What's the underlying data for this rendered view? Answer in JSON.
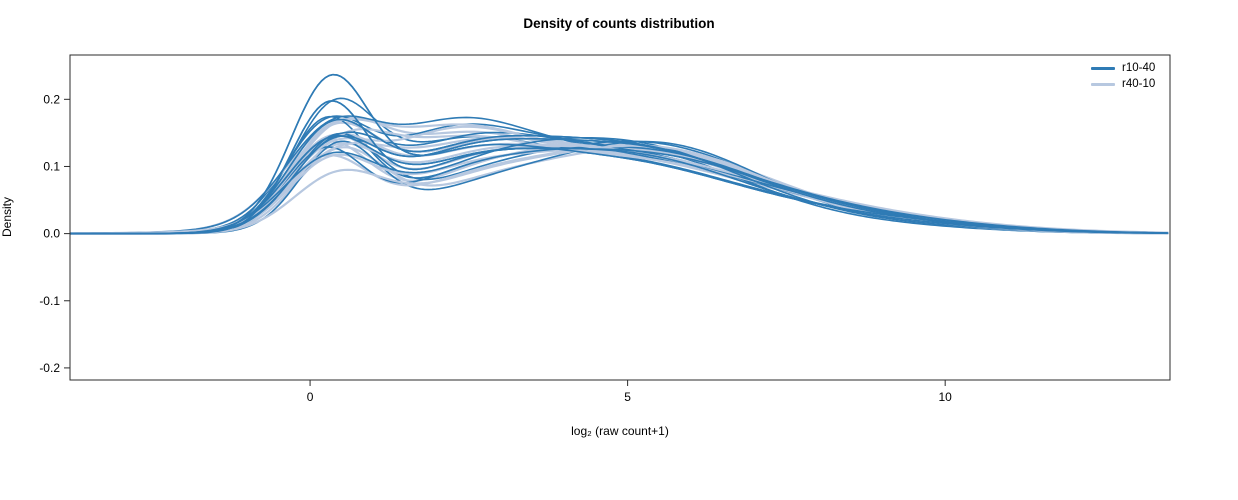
{
  "title": "Density of counts distribution",
  "chart_data": {
    "type": "line",
    "subtype": "density",
    "title": "Density of counts distribution",
    "xlabel": "log₂ (raw count+1)",
    "ylabel": "Density",
    "xlim": [
      -3.78,
      13.54
    ],
    "ylim": [
      -0.218,
      0.266
    ],
    "x_ticks": [
      0,
      5,
      10
    ],
    "y_ticks": [
      -0.2,
      -0.1,
      0.0,
      0.1,
      0.2
    ],
    "grid": false,
    "legend_position": "top-right",
    "curve_model": "y(x) = sum over triples (a,m,s) of a*exp(-(x-m)^2/(2*s^2)); each curve is a bimodal density: sharp peak near x=0.3 (height 0.10-0.235), broad hump near x=4-5.5 (height ~0.10-0.15), tail to x~13",
    "series_groups": [
      {
        "name": "r10-40",
        "color": "#2f7bb5",
        "stroke_width": 1.6,
        "curves": [
          [
            0.205,
            0.3,
            0.62,
            0.105,
            4.6,
            2.0,
            0.02,
            8.5,
            2.0,
            0.07,
            2.2,
            1.2
          ],
          [
            0.175,
            0.28,
            0.6,
            0.115,
            4.9,
            1.9,
            0.015,
            8.8,
            1.8,
            0.065,
            2.3,
            1.2
          ],
          [
            0.16,
            0.35,
            0.65,
            0.11,
            4.4,
            2.1,
            0.02,
            8.2,
            2.0,
            0.075,
            2.1,
            1.1
          ],
          [
            0.155,
            0.25,
            0.63,
            0.12,
            5.1,
            1.8,
            0.01,
            9.0,
            1.6,
            0.06,
            2.4,
            1.3
          ],
          [
            0.135,
            0.32,
            0.68,
            0.125,
            4.7,
            2.0,
            0.02,
            8.0,
            2.2,
            0.07,
            2.2,
            1.2
          ],
          [
            0.13,
            0.4,
            0.66,
            0.13,
            5.3,
            1.8,
            0.015,
            9.2,
            1.7,
            0.055,
            2.5,
            1.3
          ],
          [
            0.125,
            0.22,
            0.64,
            0.12,
            4.2,
            2.2,
            0.025,
            7.8,
            2.3,
            0.08,
            2.0,
            1.1
          ],
          [
            0.12,
            0.3,
            0.7,
            0.115,
            5.0,
            2.0,
            0.02,
            8.6,
            2.0,
            0.065,
            2.3,
            1.2
          ],
          [
            0.12,
            0.45,
            0.62,
            0.13,
            5.5,
            1.7,
            0.01,
            9.5,
            1.5,
            0.05,
            2.6,
            1.4
          ],
          [
            0.115,
            0.28,
            0.72,
            0.11,
            4.0,
            2.3,
            0.03,
            7.5,
            2.4,
            0.085,
            2.1,
            1.1
          ],
          [
            0.11,
            0.35,
            0.66,
            0.125,
            4.8,
            2.0,
            0.02,
            8.3,
            2.0,
            0.07,
            2.2,
            1.2
          ],
          [
            0.11,
            0.2,
            0.6,
            0.12,
            5.2,
            1.9,
            0.015,
            9.0,
            1.8,
            0.06,
            2.4,
            1.3
          ],
          [
            0.105,
            0.38,
            0.68,
            0.115,
            4.5,
            2.1,
            0.025,
            8.1,
            2.1,
            0.075,
            2.2,
            1.2
          ],
          [
            0.1,
            0.3,
            0.74,
            0.13,
            5.0,
            1.9,
            0.01,
            9.3,
            1.6,
            0.055,
            2.5,
            1.3
          ]
        ]
      },
      {
        "name": "r40-10",
        "color": "#b7c8e0",
        "stroke_width": 2.2,
        "curves": [
          [
            0.13,
            0.35,
            0.7,
            0.115,
            4.6,
            2.1,
            0.02,
            8.4,
            2.0,
            0.065,
            2.3,
            1.2
          ],
          [
            0.125,
            0.3,
            0.68,
            0.12,
            5.0,
            2.0,
            0.015,
            8.8,
            1.8,
            0.06,
            2.4,
            1.2
          ],
          [
            0.12,
            0.4,
            0.72,
            0.11,
            4.3,
            2.2,
            0.025,
            8.0,
            2.2,
            0.075,
            2.1,
            1.1
          ],
          [
            0.12,
            0.25,
            0.66,
            0.125,
            5.2,
            1.9,
            0.01,
            9.2,
            1.6,
            0.055,
            2.5,
            1.3
          ],
          [
            0.115,
            0.33,
            0.7,
            0.115,
            4.8,
            2.0,
            0.02,
            8.5,
            2.0,
            0.07,
            2.2,
            1.2
          ],
          [
            0.11,
            0.45,
            0.68,
            0.12,
            5.5,
            1.8,
            0.015,
            9.4,
            1.7,
            0.05,
            2.6,
            1.4
          ],
          [
            0.11,
            0.28,
            0.74,
            0.11,
            4.1,
            2.3,
            0.03,
            7.7,
            2.3,
            0.08,
            2.0,
            1.1
          ],
          [
            0.105,
            0.36,
            0.7,
            0.115,
            4.9,
            2.0,
            0.02,
            8.2,
            2.1,
            0.065,
            2.3,
            1.2
          ],
          [
            0.1,
            0.22,
            0.66,
            0.125,
            5.3,
            1.8,
            0.012,
            9.0,
            1.7,
            0.055,
            2.4,
            1.3
          ],
          [
            0.1,
            0.48,
            0.72,
            0.105,
            4.4,
            2.2,
            0.028,
            7.9,
            2.2,
            0.075,
            2.1,
            1.1
          ],
          [
            0.095,
            0.32,
            0.68,
            0.12,
            5.1,
            1.9,
            0.018,
            8.7,
            1.9,
            0.06,
            2.3,
            1.2
          ],
          [
            0.09,
            0.38,
            0.76,
            0.115,
            4.6,
            2.1,
            0.022,
            8.3,
            2.0,
            0.07,
            2.2,
            1.2
          ],
          [
            0.085,
            0.26,
            0.64,
            0.11,
            4.2,
            2.3,
            0.03,
            7.6,
            2.4,
            0.08,
            2.0,
            1.1
          ],
          [
            0.075,
            0.42,
            0.7,
            0.125,
            5.4,
            1.8,
            0.012,
            9.3,
            1.6,
            0.055,
            2.5,
            1.3
          ]
        ]
      }
    ]
  },
  "legend": {
    "items": [
      {
        "label": "r10-40",
        "color": "#2f7bb5"
      },
      {
        "label": "r40-10",
        "color": "#b7c8e0"
      }
    ]
  }
}
